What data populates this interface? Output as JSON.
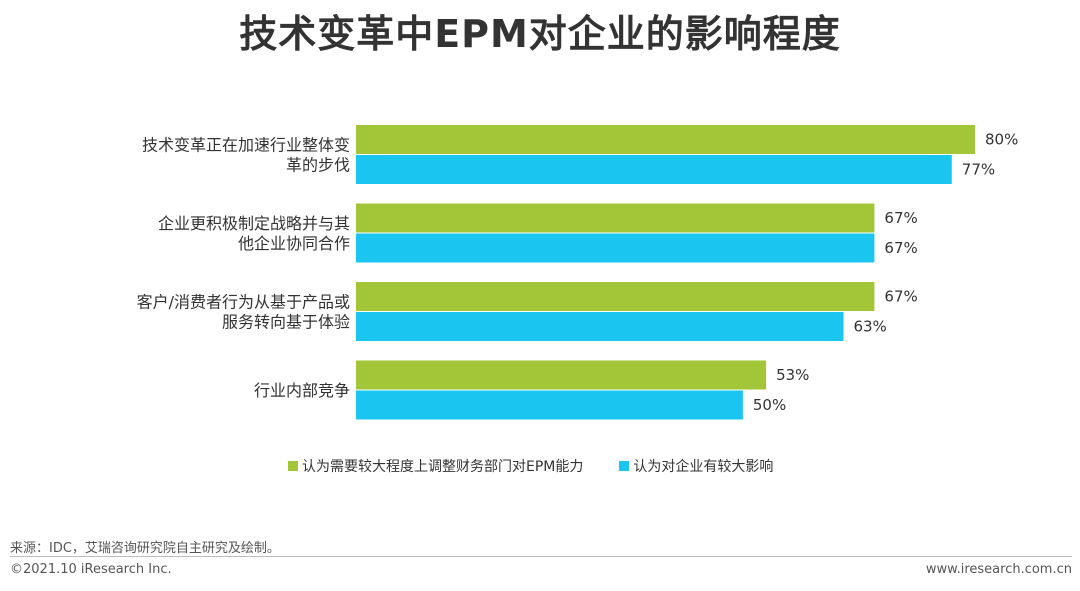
{
  "title": "技术变革中EPM对企业的影响程度",
  "colors": {
    "series1": "#a3c639",
    "series2": "#1ac6f0",
    "text": "#333333"
  },
  "chart_data": {
    "type": "bar",
    "orientation": "horizontal",
    "categories": [
      [
        "技术变革正在加速行业整体变",
        "革的步伐"
      ],
      [
        "企业更积极制定战略并与其",
        "他企业协同合作"
      ],
      [
        "客户/消费者行为从基于产品或",
        "服务转向基于体验"
      ],
      [
        "行业内部竞争"
      ]
    ],
    "series": [
      {
        "name": "认为需要较大程度上调整财务部门对EPM能力",
        "values": [
          80,
          67,
          67,
          53
        ],
        "labels": [
          "80%",
          "67%",
          "67%",
          "53%"
        ]
      },
      {
        "name": "认为对企业有较大影响",
        "values": [
          77,
          67,
          63,
          50
        ],
        "labels": [
          "77%",
          "67%",
          "63%",
          "50%"
        ]
      }
    ],
    "xlim": [
      0,
      80
    ],
    "legend_position": "bottom",
    "grid": false
  },
  "footer": {
    "source": "来源：IDC，艾瑞咨询研究院自主研究及绘制。",
    "copyright": "©2021.10 iResearch Inc.",
    "website": "www.iresearch.com.cn"
  }
}
